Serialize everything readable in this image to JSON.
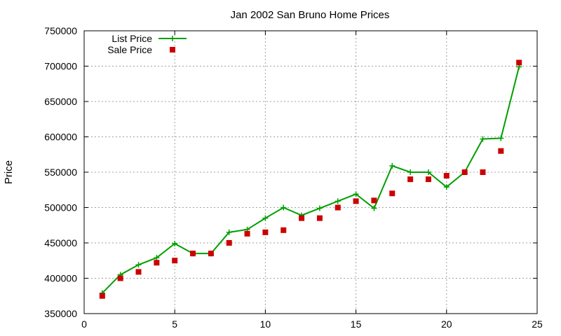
{
  "chart_data": {
    "type": "line",
    "title": "Jan 2002 San Bruno Home Prices",
    "xlabel": "",
    "ylabel": "Price",
    "xlim": [
      0,
      25
    ],
    "ylim": [
      350000,
      750000
    ],
    "xticks": [
      0,
      5,
      10,
      15,
      20,
      25
    ],
    "yticks": [
      350000,
      400000,
      450000,
      500000,
      550000,
      600000,
      650000,
      700000,
      750000
    ],
    "grid": true,
    "legend_position": "top-left",
    "series": [
      {
        "name": "List Price",
        "style": "linespoints",
        "marker": "plus",
        "color": "#00a000",
        "x": [
          1,
          2,
          3,
          4,
          5,
          6,
          7,
          8,
          9,
          10,
          11,
          12,
          13,
          14,
          15,
          16,
          17,
          18,
          19,
          20,
          21,
          22,
          23,
          24
        ],
        "values": [
          379000,
          405000,
          419000,
          429000,
          449000,
          435000,
          435000,
          465000,
          469000,
          485000,
          500000,
          489000,
          499000,
          509000,
          519000,
          499000,
          559000,
          550000,
          550000,
          529000,
          550000,
          597000,
          598000,
          699000
        ]
      },
      {
        "name": "Sale Price",
        "style": "points",
        "marker": "square",
        "color": "#cc0000",
        "x": [
          1,
          2,
          3,
          4,
          5,
          6,
          7,
          8,
          9,
          10,
          11,
          12,
          13,
          14,
          15,
          16,
          17,
          18,
          19,
          20,
          21,
          22,
          23,
          24
        ],
        "values": [
          375000,
          400000,
          409000,
          422000,
          425000,
          435000,
          435000,
          450000,
          463000,
          465000,
          468000,
          485000,
          485000,
          500000,
          509000,
          510000,
          520000,
          540000,
          540000,
          545000,
          550000,
          550000,
          580000,
          705000
        ]
      }
    ]
  }
}
